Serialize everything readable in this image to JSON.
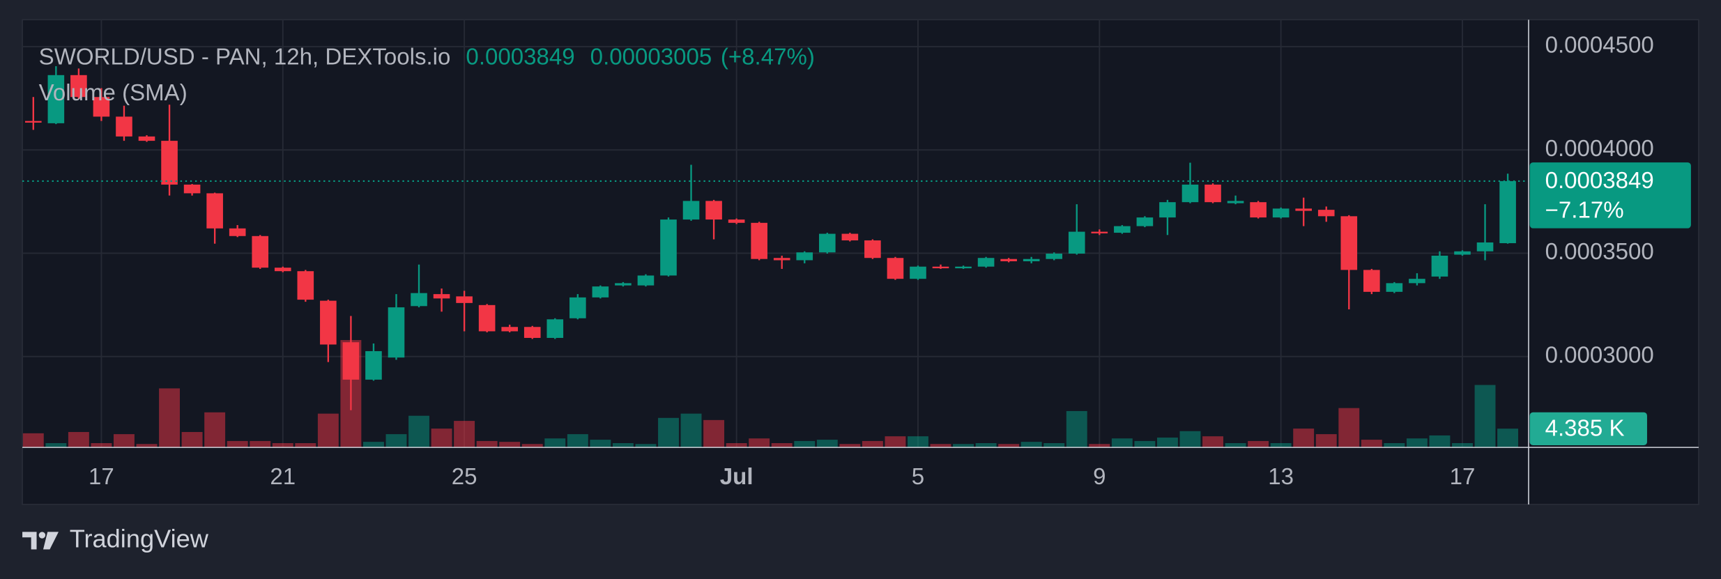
{
  "chart_data": {
    "type": "candlestick",
    "title": "SWORLD/USD - PAN, 12h, DEXTools.io",
    "change": 3.005e-05,
    "change_label": "(+8.47%)",
    "volume_label": "Volume (SMA)",
    "tag_change_label": "−7.17%",
    "last_volume_label": "4.385 K",
    "brand": "TradingView",
    "up_color": "#089981",
    "down_color": "#f23645",
    "grid": true,
    "ylim": [
      0.000256,
      0.000463
    ],
    "yticks": [
      {
        "value": 0.0003,
        "label": "0.0003000"
      },
      {
        "value": 0.00035,
        "label": "0.0003500"
      },
      {
        "value": 0.0004,
        "label": "0.0004000"
      },
      {
        "value": 0.00045,
        "label": "0.0004500"
      }
    ],
    "volume_ylim": [
      0,
      100000
    ],
    "xticks": [
      {
        "value": 3,
        "label": "17"
      },
      {
        "value": 11,
        "label": "21"
      },
      {
        "value": 19,
        "label": "25"
      },
      {
        "value": 31,
        "label": "Jul"
      },
      {
        "value": 39,
        "label": "5"
      },
      {
        "value": 47,
        "label": "9"
      },
      {
        "value": 55,
        "label": "13"
      },
      {
        "value": 63,
        "label": "17"
      }
    ],
    "open": [
      0.000414,
      0.0004129,
      0.0004362,
      0.0004256,
      0.0004161,
      0.0004065,
      0.0004044,
      0.0003832,
      0.000379,
      0.000362,
      0.0003583,
      0.000343,
      0.0003413,
      0.000327,
      0.0003069,
      0.0002888,
      0.0002995,
      0.0003244,
      0.0003302,
      0.0003291,
      0.0003249,
      0.0003143,
      0.0003143,
      0.000309,
      0.0003185,
      0.0003286,
      0.0003344,
      0.0003344,
      0.0003392,
      0.0003663,
      0.0003753,
      0.0003663,
      0.0003647,
      0.0003477,
      0.0003466,
      0.0003504,
      0.0003594,
      0.0003562,
      0.0003477,
      0.0003376,
      0.0003435,
      0.000343,
      0.0003435,
      0.0003472,
      0.0003461,
      0.0003472,
      0.0003498,
      0.0003604,
      0.0003599,
      0.0003631,
      0.0003673,
      0.0003747,
      0.0003832,
      0.0003742,
      0.0003747,
      0.0003673,
      0.0003716,
      0.000371,
      0.0003679,
      0.0003419,
      0.0003313,
      0.0003355,
      0.0003387,
      0.0003493,
      0.0003509,
      0.00035485
    ],
    "high": [
      0.0004256,
      0.0004405,
      0.0004394,
      0.0004299,
      0.0004214,
      0.0004071,
      0.0004219,
      0.0003835,
      0.0003793,
      0.0003636,
      0.0003588,
      0.0003435,
      0.0003419,
      0.0003275,
      0.0003196,
      0.0003063,
      0.0003302,
      0.0003445,
      0.0003329,
      0.0003318,
      0.0003254,
      0.0003154,
      0.0003148,
      0.0003185,
      0.0003302,
      0.0003344,
      0.000336,
      0.0003398,
      0.0003673,
      0.0003928,
      0.0003758,
      0.0003668,
      0.0003652,
      0.0003488,
      0.0003509,
      0.0003599,
      0.0003599,
      0.0003567,
      0.0003482,
      0.000344,
      0.0003445,
      0.000344,
      0.0003482,
      0.0003477,
      0.0003482,
      0.0003504,
      0.0003737,
      0.0003615,
      0.0003636,
      0.0003679,
      0.0003758,
      0.0003938,
      0.0003838,
      0.0003779,
      0.0003753,
      0.0003721,
      0.0003769,
      0.0003726,
      0.0003684,
      0.0003424,
      0.000336,
      0.0003403,
      0.0003509,
      0.0003514,
      0.0003737,
      0.0003885
    ],
    "low": [
      0.0004097,
      0.0004125,
      0.0004246,
      0.000414,
      0.0004044,
      0.0004039,
      0.0003779,
      0.0003779,
      0.0003546,
      0.0003578,
      0.0003424,
      0.0003408,
      0.0003265,
      0.0002973,
      0.000274,
      0.0002883,
      0.0002984,
      0.0003238,
      0.0003217,
      0.0003122,
      0.0003117,
      0.0003117,
      0.0003085,
      0.0003085,
      0.000318,
      0.0003281,
      0.0003339,
      0.0003339,
      0.0003387,
      0.0003657,
      0.0003567,
      0.0003641,
      0.0003466,
      0.0003424,
      0.0003451,
      0.0003498,
      0.0003557,
      0.0003472,
      0.0003371,
      0.0003371,
      0.0003424,
      0.0003424,
      0.000343,
      0.0003456,
      0.0003451,
      0.0003466,
      0.0003493,
      0.0003588,
      0.0003594,
      0.0003626,
      0.0003588,
      0.0003742,
      0.0003742,
      0.0003737,
      0.0003668,
      0.0003668,
      0.0003631,
      0.0003652,
      0.0003228,
      0.0003302,
      0.0003307,
      0.0003344,
      0.0003376,
      0.0003488,
      0.0003466,
      0.0003546
    ],
    "close": [
      0.0004138,
      0.0004362,
      0.0004256,
      0.0004161,
      0.0004065,
      0.0004044,
      0.0003832,
      0.000379,
      0.000362,
      0.0003583,
      0.000343,
      0.0003413,
      0.0003275,
      0.0003058,
      0.0002888,
      0.0003026,
      0.0003238,
      0.0003307,
      0.0003281,
      0.0003259,
      0.0003122,
      0.0003122,
      0.000309,
      0.000318,
      0.0003286,
      0.0003339,
      0.0003355,
      0.0003392,
      0.0003663,
      0.0003753,
      0.0003663,
      0.0003647,
      0.0003472,
      0.0003466,
      0.0003504,
      0.0003594,
      0.0003562,
      0.0003477,
      0.0003376,
      0.0003435,
      0.000343,
      0.0003435,
      0.0003477,
      0.0003461,
      0.0003472,
      0.0003498,
      0.0003604,
      0.0003599,
      0.0003631,
      0.0003673,
      0.0003747,
      0.0003832,
      0.0003747,
      0.0003753,
      0.0003673,
      0.0003716,
      0.0003705,
      0.0003679,
      0.0003419,
      0.0003313,
      0.0003355,
      0.0003376,
      0.0003488,
      0.0003509,
      0.0003552,
      0.0003849
    ],
    "volume": [
      3300,
      1000,
      3600,
      1000,
      3100,
      800,
      13800,
      3600,
      8200,
      1500,
      1500,
      1000,
      1000,
      7900,
      25100,
      1300,
      3100,
      7400,
      4400,
      6200,
      1500,
      1300,
      800,
      2100,
      3100,
      1800,
      1000,
      800,
      6900,
      7900,
      6400,
      1000,
      2100,
      1000,
      1500,
      1800,
      800,
      1500,
      2600,
      2600,
      800,
      800,
      1000,
      800,
      1300,
      1000,
      8500,
      800,
      2100,
      1500,
      2300,
      3800,
      2600,
      1000,
      1500,
      1000,
      4400,
      3100,
      9200,
      1800,
      1000,
      2100,
      2800,
      1000,
      14600,
      4385
    ]
  }
}
